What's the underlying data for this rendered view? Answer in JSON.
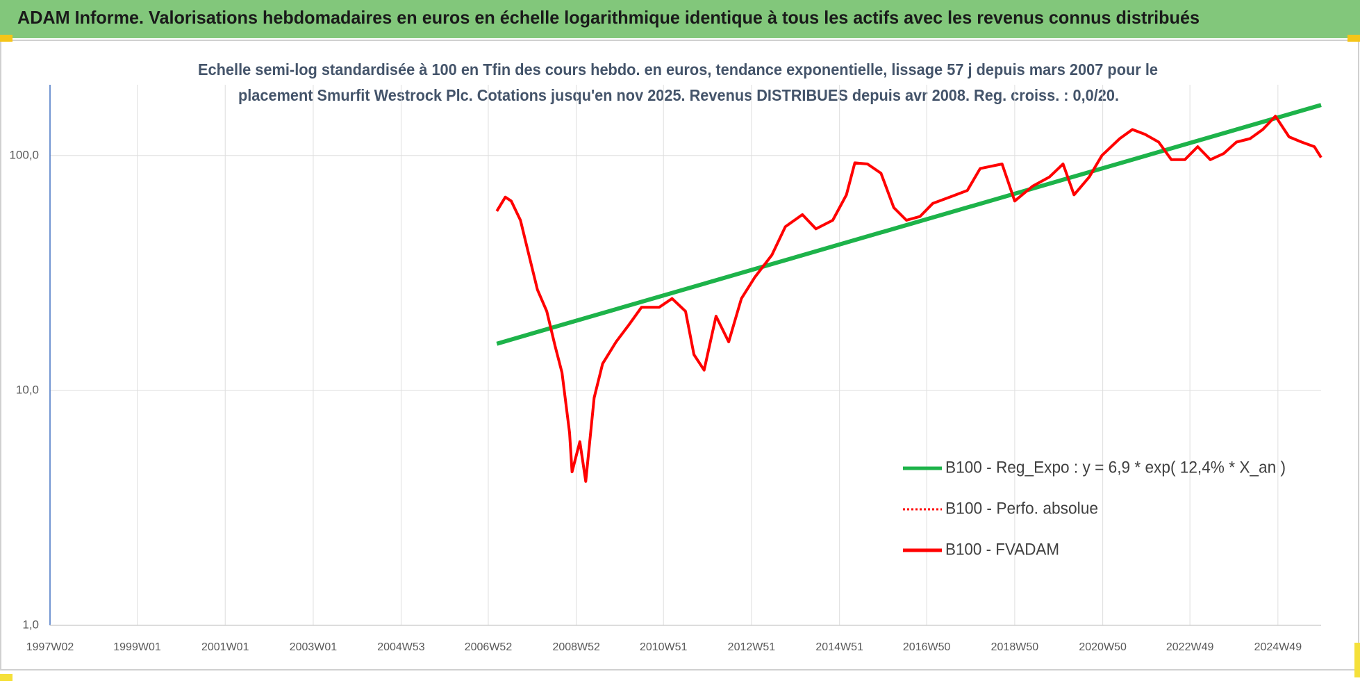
{
  "chart_data": {
    "type": "line",
    "title": "ADAM Informe. Valorisations hebdomadaires en euros en échelle logarithmique identique à tous les actifs avec les revenus connus distribués",
    "subtitle": [
      "Echelle semi-log standardisée à 100 en Tfin des cours hebdo. en euros, tendance exponentielle, lissage 57 j depuis mars 2007 pour le",
      "placement Smurfit Westrock Plc. Cotations jusqu'en nov 2025. Revenus DISTRIBUES depuis avr 2008. Reg. croiss. : 0,0/20."
    ],
    "log_scale": true,
    "grid": true,
    "legend": "right",
    "xlim": [
      "1997W02",
      "2025W48"
    ],
    "xticks": [
      "1997W02",
      "1999W01",
      "2001W01",
      "2003W01",
      "2004W53",
      "2006W52",
      "2008W52",
      "2010W51",
      "2012W51",
      "2014W51",
      "2016W50",
      "2018W50",
      "2020W50",
      "2022W49",
      "2024W49"
    ],
    "ylim": [
      1,
      200
    ],
    "yticks": [
      {
        "value": 1,
        "label": "1,0"
      },
      {
        "value": 10,
        "label": "10,0"
      },
      {
        "value": 100,
        "label": "100,0"
      }
    ],
    "x": [
      "2007W10",
      "2007W20",
      "2007W27",
      "2007W38",
      "2007W48",
      "2008W06",
      "2008W17",
      "2008W27",
      "2008W35",
      "2008W44",
      "2008W47",
      "2009W04",
      "2009W11",
      "2009W21",
      "2009W31",
      "2009W47",
      "2010W10",
      "2010W25",
      "2010W46",
      "2011W09",
      "2011W25",
      "2011W35",
      "2011W47",
      "2012W09",
      "2012W24",
      "2012W39",
      "2013W03",
      "2013W23",
      "2013W39",
      "2014W07",
      "2014W23",
      "2014W43",
      "2015W07",
      "2015W17",
      "2015W32",
      "2015W48",
      "2016W11",
      "2016W26",
      "2016W42",
      "2017W05",
      "2017W25",
      "2017W46",
      "2018W09",
      "2018W35",
      "2018W50",
      "2019W19",
      "2019W39",
      "2020W03",
      "2020W16",
      "2020W34",
      "2020W49",
      "2021W18",
      "2021W33",
      "2021W48",
      "2022W12",
      "2022W27",
      "2022W43",
      "2023W06",
      "2023W21",
      "2023W37",
      "2023W52",
      "2024W16",
      "2024W31",
      "2024W46",
      "2025W10",
      "2025W25",
      "2025W40",
      "2025W48"
    ],
    "series": [
      {
        "name": "B100 - Reg_Expo : y = 6,9 * exp( 12,4% *  X_an )",
        "color": "#1db34a",
        "style": "solid",
        "width": 6,
        "x": [
          "2007W10",
          "2025W48"
        ],
        "values": [
          15.8,
          164
        ]
      },
      {
        "name": "B100 - Perfo. absolue",
        "color": "#ff0000",
        "style": "dotted",
        "width": 3,
        "values": [
          58,
          66.5,
          64,
          53,
          37.7,
          26.8,
          21.7,
          15.4,
          11.9,
          6.6,
          4.5,
          6.05,
          4.1,
          9.3,
          13,
          16.1,
          19,
          22.6,
          22.6,
          24.6,
          21.7,
          14.2,
          12.2,
          20.7,
          16.1,
          24.6,
          30.4,
          37.7,
          49.8,
          56,
          48.7,
          53,
          68,
          93,
          92,
          84,
          60,
          53,
          55,
          62.5,
          66.5,
          71,
          88,
          92,
          64,
          74,
          81,
          92,
          68,
          81,
          100,
          118,
          129,
          123,
          114,
          96,
          96,
          109,
          96,
          102,
          114,
          118,
          129,
          147,
          120,
          114,
          109,
          98
        ]
      },
      {
        "name": "B100 - FVADAM",
        "color": "#ff0000",
        "style": "solid",
        "width": 4,
        "values": [
          58,
          66.5,
          64,
          53,
          37.7,
          26.8,
          21.7,
          15.4,
          11.9,
          6.6,
          4.5,
          6.05,
          4.1,
          9.3,
          13,
          16.1,
          19,
          22.6,
          22.6,
          24.6,
          21.7,
          14.2,
          12.2,
          20.7,
          16.1,
          24.6,
          30.4,
          37.7,
          49.8,
          56,
          48.7,
          53,
          68,
          93,
          92,
          84,
          60,
          53,
          55,
          62.5,
          66.5,
          71,
          88,
          92,
          64,
          74,
          81,
          92,
          68,
          81,
          100,
          118,
          129,
          123,
          114,
          96,
          96,
          109,
          96,
          102,
          114,
          118,
          129,
          147,
          120,
          114,
          109,
          98
        ]
      }
    ]
  }
}
